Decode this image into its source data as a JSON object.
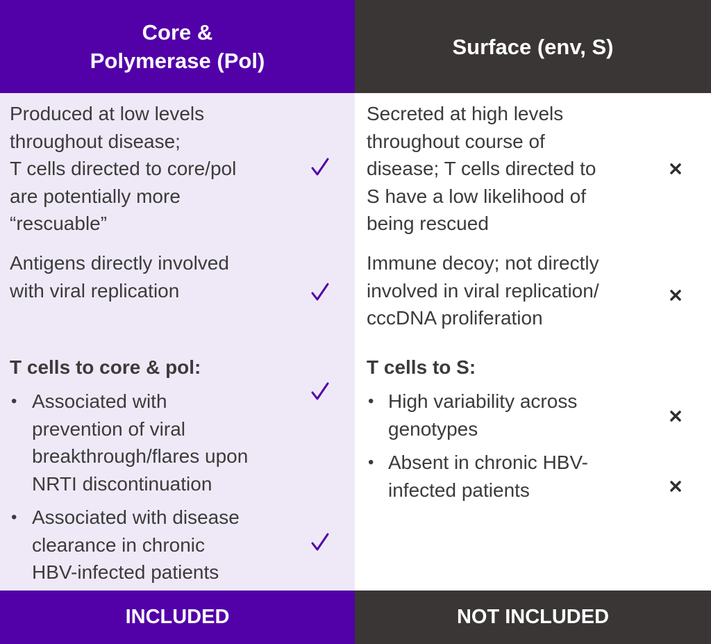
{
  "left": {
    "header_lines": [
      "Core &",
      "Polymerase (Pol)"
    ],
    "rows": [
      {
        "lines": [
          "Produced at low levels",
          "throughout disease;",
          "T cells directed to core/pol",
          "are potentially more",
          "“rescuable”"
        ]
      },
      {
        "lines": [
          "Antigens directly involved",
          "with viral replication"
        ]
      }
    ],
    "section_title": "T cells to core & pol:",
    "bullets": [
      {
        "lines": [
          "Associated with",
          "prevention of viral",
          "breakthrough/flares upon",
          "NRTI discontinuation"
        ]
      },
      {
        "lines": [
          "Associated with disease",
          "clearance in chronic",
          "HBV-infected patients"
        ]
      }
    ],
    "bullet_char": "•",
    "footer": "INCLUDED",
    "mark_icon": "checkmark-icon",
    "mark_color": "#5200a8"
  },
  "right": {
    "header_lines": [
      "Surface (env, S)"
    ],
    "rows": [
      {
        "lines": [
          "Secreted at high levels",
          "throughout course of",
          "disease; T cells directed to",
          "S have a low likelihood of",
          "being rescued"
        ]
      },
      {
        "lines": [
          "Immune decoy; not directly",
          "involved in viral replication/",
          "cccDNA proliferation"
        ]
      }
    ],
    "section_title": "T cells to S:",
    "bullets": [
      {
        "lines": [
          "High variability across",
          "genotypes"
        ]
      },
      {
        "lines": [
          "Absent in chronic HBV-",
          "infected patients"
        ]
      }
    ],
    "bullet_char": "•",
    "footer": "NOT INCLUDED",
    "mark_icon": "cross-icon",
    "mark_color": "#2e2e2e"
  },
  "colors": {
    "left_accent": "#5200a8",
    "right_accent": "#3a3636",
    "left_background": "#efe9f7",
    "right_background": "#ffffff",
    "header_text": "#ffffff",
    "body_text": "#3b3b3b"
  }
}
